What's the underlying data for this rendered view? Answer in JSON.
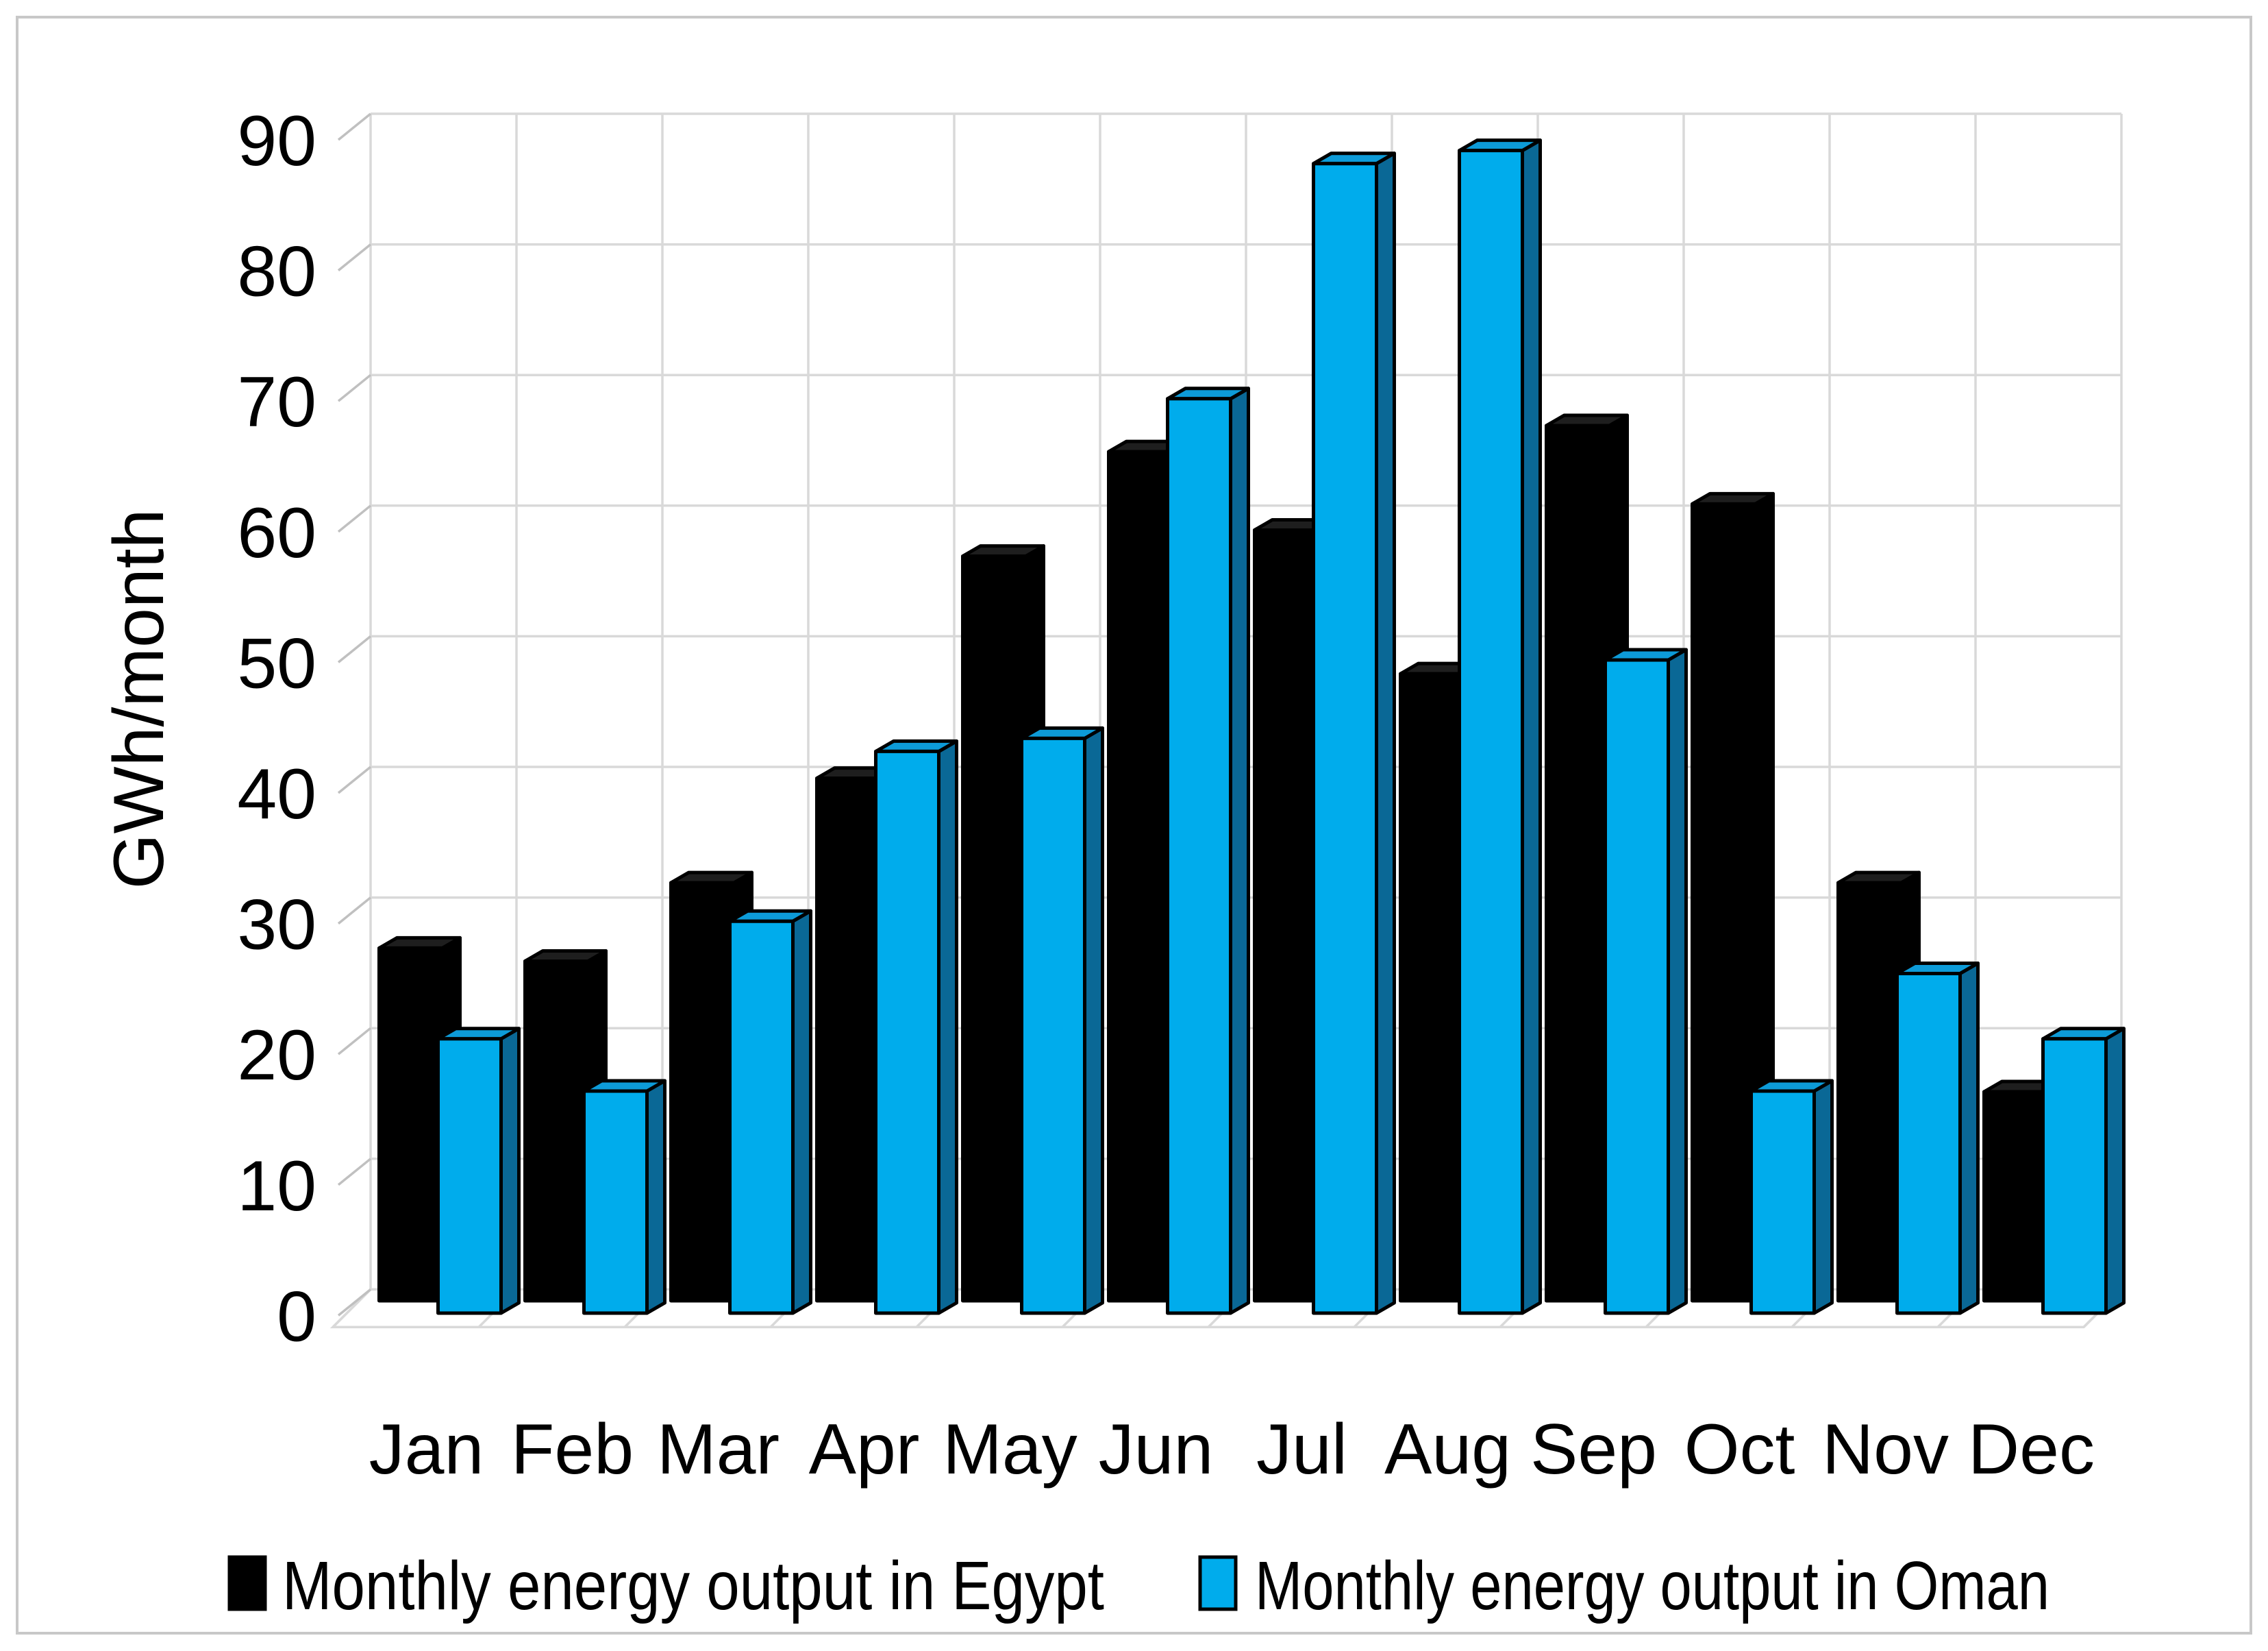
{
  "figure": {
    "description": "3-D clustered column chart comparing monthly wind-turbine energy output in Egypt and Oman"
  },
  "chart_data": {
    "type": "bar",
    "style": "3d-clustered-column",
    "title": "",
    "xlabel": "",
    "ylabel": "GWh/month",
    "ylim": [
      0,
      90
    ],
    "ytick_step": 10,
    "yticks": [
      90,
      80,
      70,
      60,
      50,
      40,
      30,
      20,
      10,
      0
    ],
    "grid": true,
    "legend_position": "bottom",
    "categories": [
      "Jan",
      "Feb",
      "Mar",
      "Apr",
      "May",
      "Jun",
      "Jul",
      "Aug",
      "Sep",
      "Oct",
      "Nov",
      "Dec"
    ],
    "series": [
      {
        "name": "Monthly energy output in Egypt",
        "key": "egypt",
        "color": "#000000",
        "color_top": "#1e1e1e",
        "color_side": "#000000",
        "values": [
          27,
          26,
          32,
          40,
          57,
          65,
          59,
          48,
          67,
          61,
          32,
          16
        ]
      },
      {
        "name": "Monthly energy output in Oman",
        "key": "oman",
        "color": "#00acec",
        "color_top": "#0d9bd8",
        "color_side": "#0a6896",
        "values": [
          21,
          17,
          30,
          43,
          44,
          70,
          88,
          89,
          50,
          17,
          26,
          21
        ]
      }
    ],
    "colors": {
      "background": "#ffffff",
      "outer_border": "#c8c8c8",
      "gridline": "#d9d9d9",
      "tick": "#c0c0c0",
      "text": "#000000",
      "bar_outline": "#000000"
    }
  }
}
